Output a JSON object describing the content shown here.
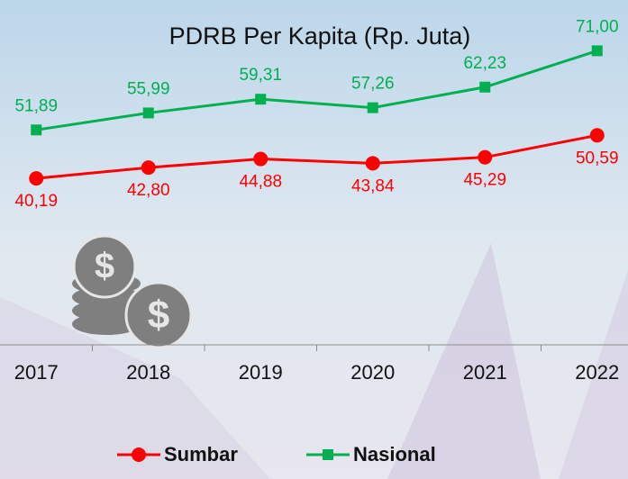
{
  "chart_data": {
    "type": "line",
    "title": "PDRB Per Kapita (Rp. Juta)",
    "categories": [
      "2017",
      "2018",
      "2019",
      "2020",
      "2021",
      "2022"
    ],
    "ylim": [
      0,
      80
    ],
    "series": [
      {
        "name": "Sumbar",
        "color": "#ff0000",
        "marker": "circle",
        "values": [
          40.19,
          42.8,
          44.88,
          43.84,
          45.29,
          50.59
        ],
        "value_labels": [
          "40,19",
          "42,80",
          "44,88",
          "43,84",
          "45,29",
          "50,59"
        ]
      },
      {
        "name": "Nasional",
        "color": "#00b050",
        "marker": "square",
        "values": [
          51.89,
          55.99,
          59.31,
          57.26,
          62.23,
          71.0
        ],
        "value_labels": [
          "51,89",
          "55,99",
          "59,31",
          "57,26",
          "62,23",
          "71,00"
        ]
      }
    ]
  }
}
